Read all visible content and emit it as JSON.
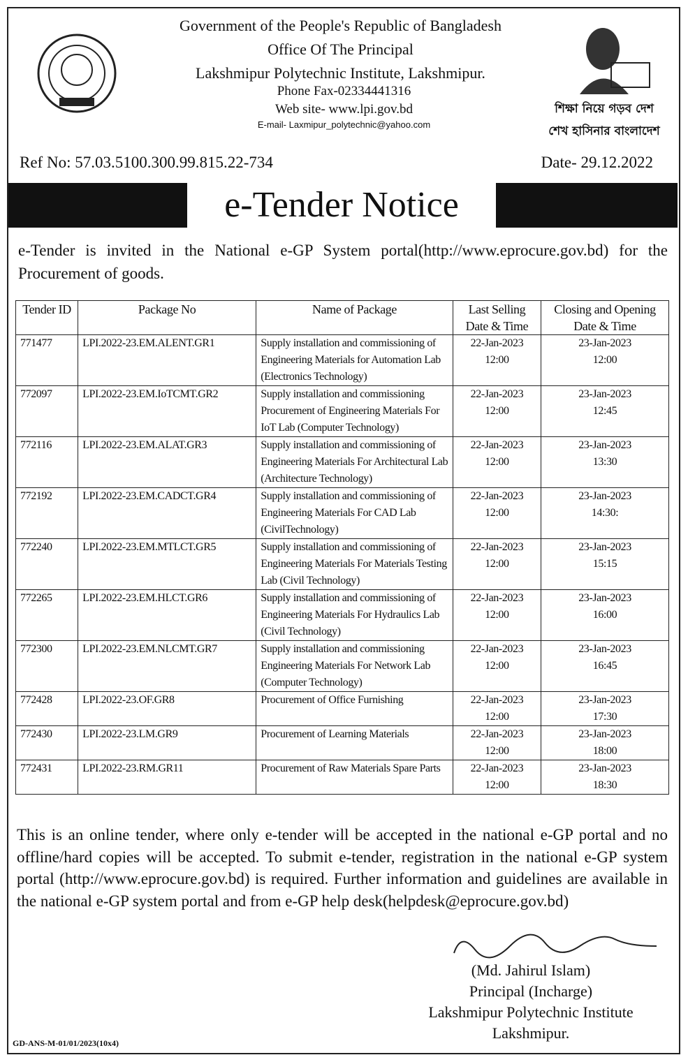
{
  "header": {
    "lines": [
      "Government of the People's Republic of Bangladesh",
      "Office Of The Principal",
      "Lakshmipur Polytechnic Institute, Lakshmipur."
    ],
    "phone": "Phone Fax-02334441316",
    "website": "Web site- www.lpi.gov.bd",
    "email": "E-mail- Laxmipur_polytechnic@yahoo.com",
    "slogan": [
      "শিক্ষা নিয়ে গড়ব দেশ",
      "শেখ হাসিনার বাংলাদেশ"
    ],
    "ref_no": "Ref No:  57.03.5100.300.99.815.22-734",
    "date": "Date- 29.12.2022",
    "title": "e-Tender Notice"
  },
  "intro": "e-Tender  is invited in the National e-GP System portal(http://www.eprocure.gov.bd) for the Procurement of goods.",
  "table": {
    "header": [
      "Tender ID",
      "Package No",
      "Name of Package",
      "Last Selling Date & Time",
      "Closing and Opening Date & Time"
    ],
    "rows": [
      {
        "id": "771477",
        "package": "LPI.2022-23.EM.ALENT.GR1",
        "name": "Supply installation and commissioning of Engineering Materials for Automation Lab (Electronics Technology)",
        "last_date": "22-Jan-2023",
        "last_time": "12:00",
        "close_date": "23-Jan-2023",
        "close_time": "12:00"
      },
      {
        "id": "772097",
        "package": "LPI.2022-23.EM.IoTCMT.GR2",
        "name": "Supply installation and commissioning Procurement of Engineering Materials For IoT Lab (Computer Technology)",
        "last_date": "22-Jan-2023",
        "last_time": "12:00",
        "close_date": "23-Jan-2023",
        "close_time": "12:45"
      },
      {
        "id": "772116",
        "package": "LPI.2022-23.EM.ALAT.GR3",
        "name": "Supply installation and commissioning of Engineering Materials For Architectural Lab (Architecture Technology)",
        "last_date": "22-Jan-2023",
        "last_time": "12:00",
        "close_date": "23-Jan-2023",
        "close_time": "13:30"
      },
      {
        "id": "772192",
        "package": "LPI.2022-23.EM.CADCT.GR4",
        "name": "Supply installation and commissioning of Engineering Materials For CAD Lab (CivilTechnology)",
        "last_date": "22-Jan-2023",
        "last_time": "12:00",
        "close_date": "23-Jan-2023",
        "close_time": "14:30:"
      },
      {
        "id": "772240",
        "package": "LPI.2022-23.EM.MTLCT.GR5",
        "name": "Supply installation and commissioning of Engineering Materials For Materials Testing Lab (Civil Technology)",
        "last_date": "22-Jan-2023",
        "last_time": "12:00",
        "close_date": "23-Jan-2023",
        "close_time": "15:15"
      },
      {
        "id": "772265",
        "package": "LPI.2022-23.EM.HLCT.GR6",
        "name": "Supply installation and commissioning of Engineering Materials For Hydraulics Lab (Civil Technology)",
        "last_date": "22-Jan-2023",
        "last_time": "12:00",
        "close_date": "23-Jan-2023",
        "close_time": "16:00"
      },
      {
        "id": "772300",
        "package": "LPI.2022-23.EM.NLCMT.GR7",
        "name": "Supply installation and commissioning Engineering Materials For Network Lab (Computer Technology)",
        "last_date": "22-Jan-2023",
        "last_time": "12:00",
        "close_date": "23-Jan-2023",
        "close_time": "16:45"
      },
      {
        "id": "772428",
        "package": "LPI.2022-23.OF.GR8",
        "name": "Procurement of Office Furnishing",
        "last_date": "22-Jan-2023",
        "last_time": "12:00",
        "close_date": "23-Jan-2023",
        "close_time": "17:30"
      },
      {
        "id": "772430",
        "package": "LPI.2022-23.LM.GR9",
        "name": "Procurement of Learning Materials",
        "last_date": "22-Jan-2023",
        "last_time": "12:00",
        "close_date": "23-Jan-2023",
        "close_time": "18:00"
      },
      {
        "id": "772431",
        "package": "LPI.2022-23.RM.GR11",
        "name": "Procurement of Raw Materials Spare Parts",
        "last_date": "22-Jan-2023",
        "last_time": "12:00",
        "close_date": "23-Jan-2023",
        "close_time": "18:30"
      }
    ]
  },
  "footer": "This is an online tender, where only e-tender will be accepted in the national e-GP portal and no offline/hard copies will be accepted. To submit e-tender, registration in the national e-GP system portal (http://www.eprocure.gov.bd) is required.  Further information and guidelines are available in the national e-GP system portal and from e-GP help desk(helpdesk@eprocure.gov.bd)",
  "signature": [
    "(Md. Jahirul Islam)",
    "Principal (Incharge)",
    "Lakshmipur Polytechnic Institute",
    "Lakshmipur."
  ],
  "code": "GD-ANS-M-01/01/2023(10x4)"
}
